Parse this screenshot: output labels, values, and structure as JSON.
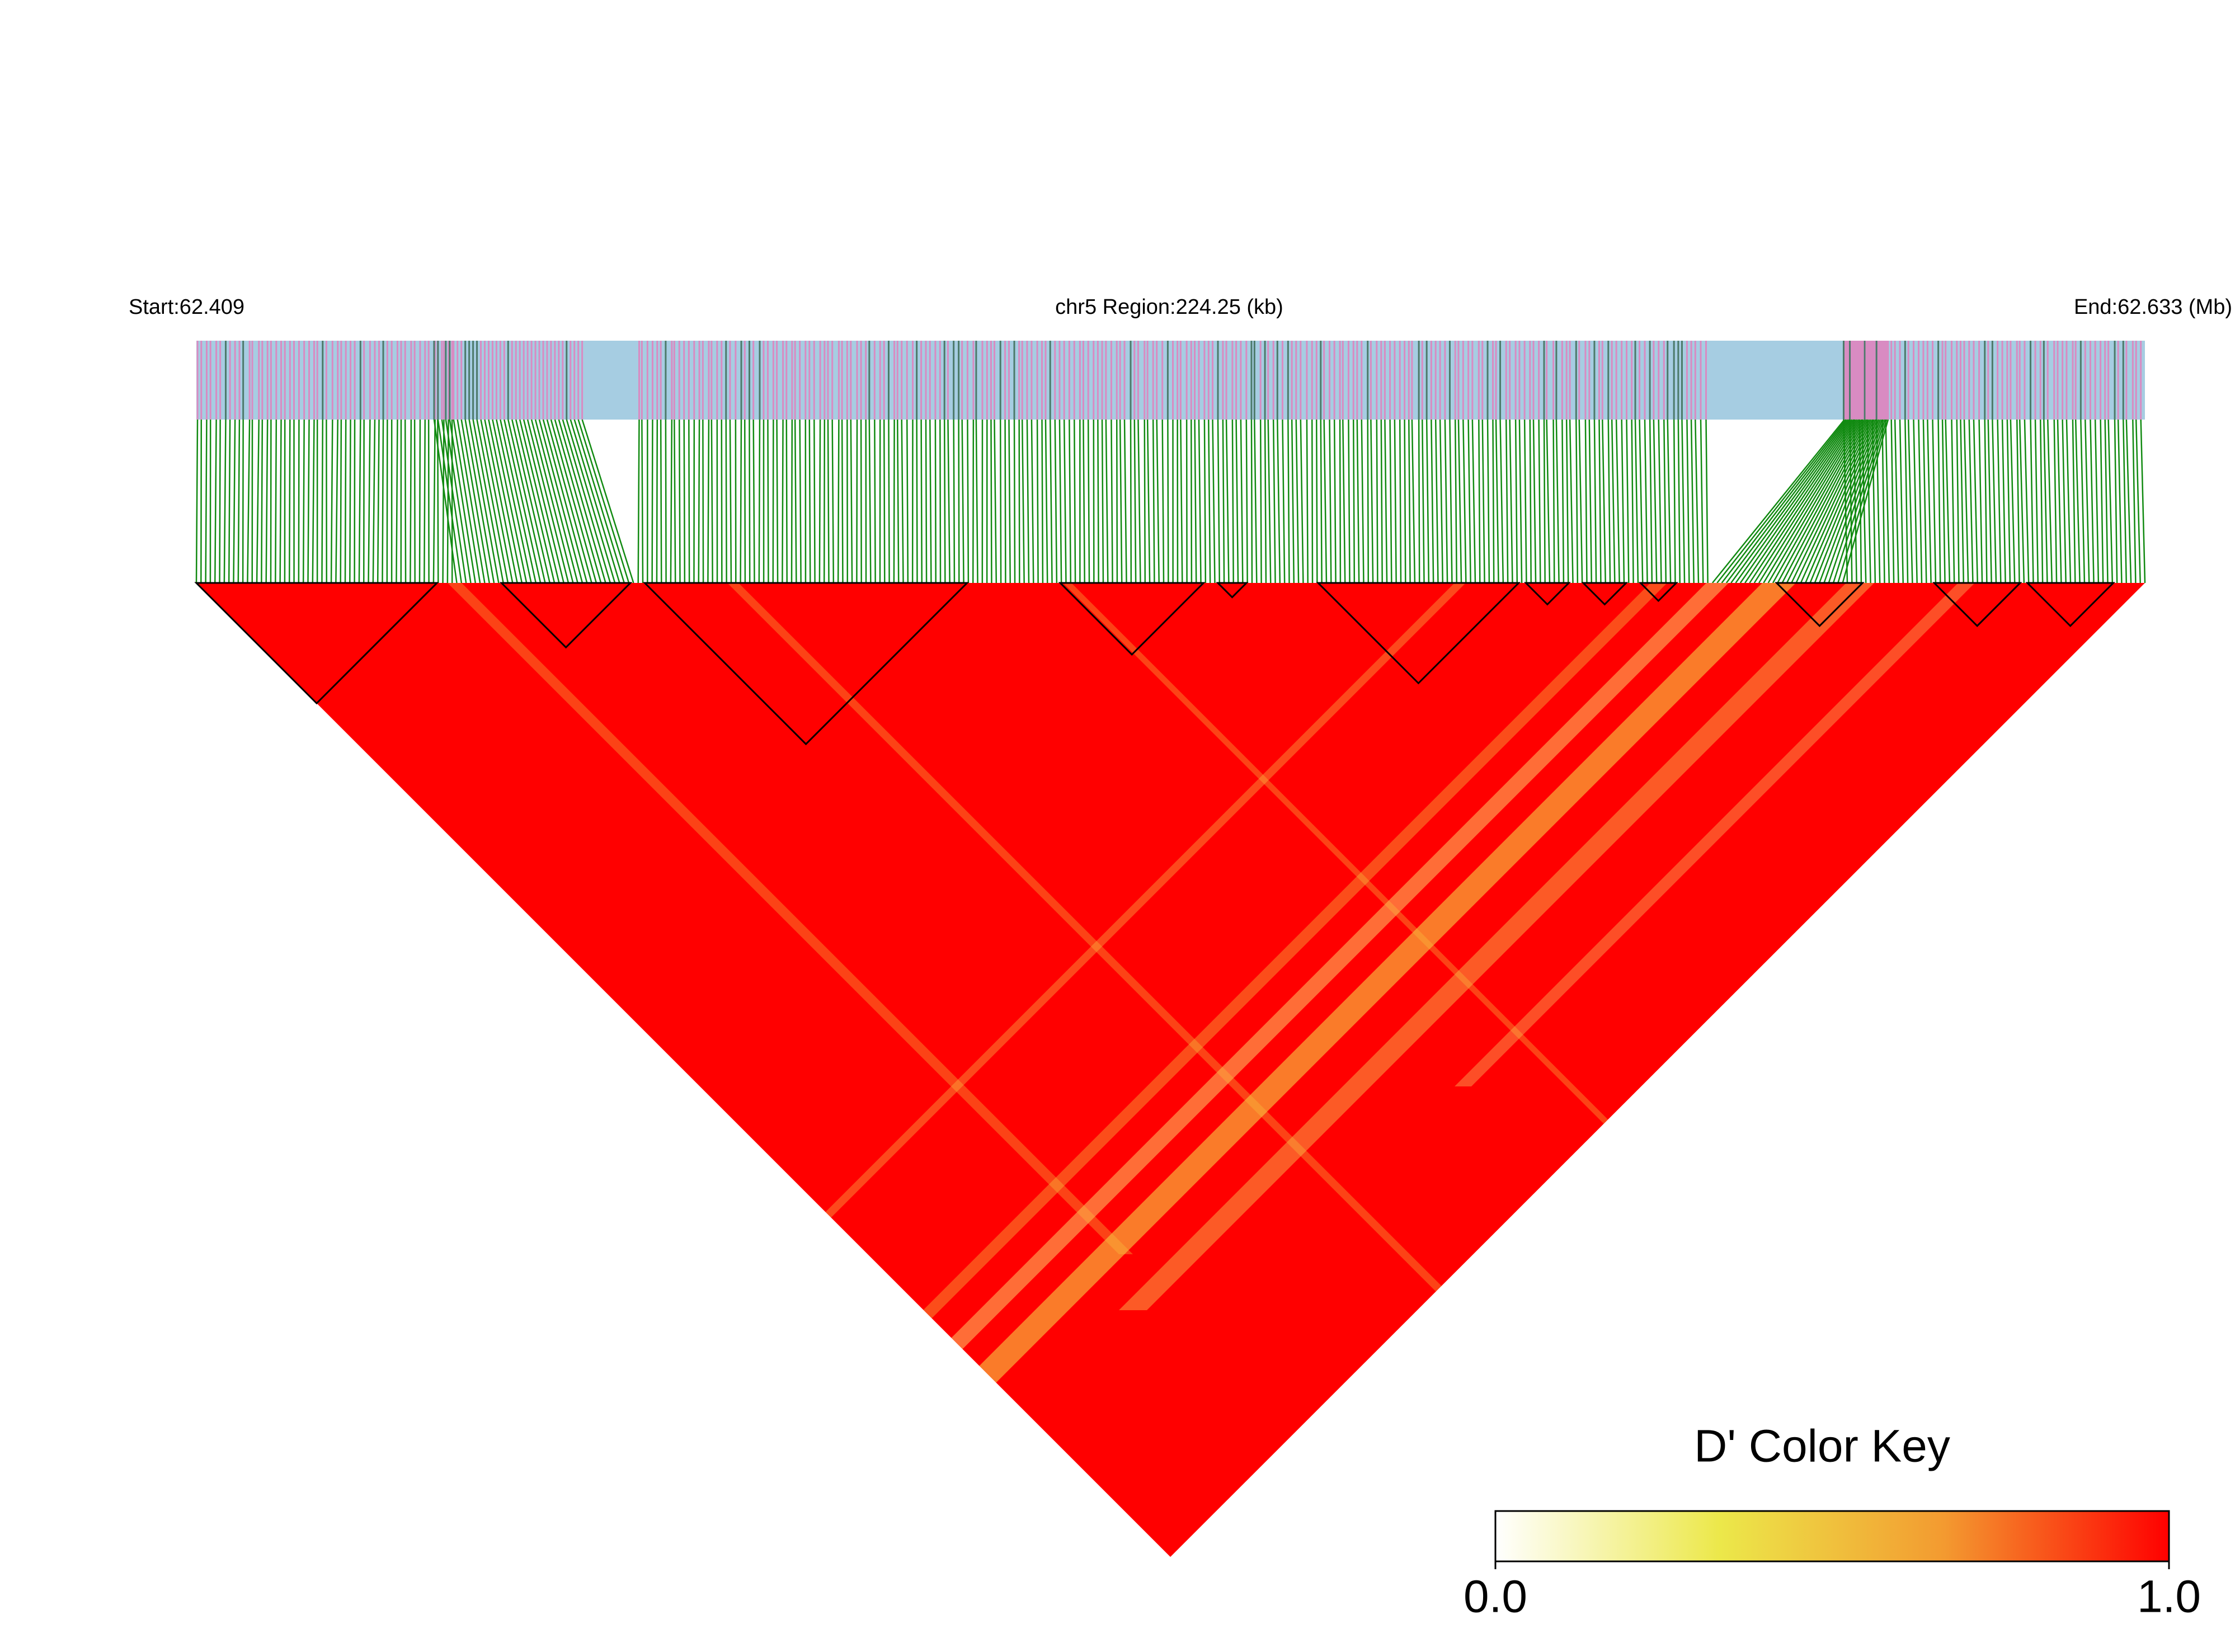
{
  "chart_data": {
    "type": "heatmap",
    "start_label": "Start:62.409",
    "region_label": "chr5 Region:224.25 (kb)",
    "end_label": "End:62.633 (Mb)",
    "color": "#ff0000",
    "colorbar": {
      "title": "D' Color Key",
      "colors": [
        "#ffffff",
        "#ece84a",
        "#f39a30",
        "#ff0000"
      ],
      "lim": [
        0,
        1
      ],
      "ticks": [
        {
          "value": 0,
          "label": "0.0"
        },
        {
          "value": 1,
          "label": "1.0"
        }
      ]
    }
  }
}
